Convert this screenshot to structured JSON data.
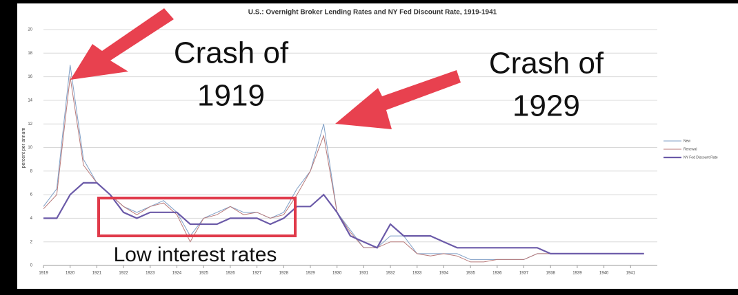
{
  "chart_data": {
    "type": "line",
    "title": "U.S.: Overnight Broker Lending Rates and NY Fed Discount Rate, 1919-1941",
    "y_label": "percent per annum",
    "x": [
      1919,
      1919.5,
      1920,
      1920.5,
      1921,
      1921.5,
      1922,
      1922.5,
      1923,
      1923.5,
      1924,
      1924.5,
      1925,
      1925.5,
      1926,
      1926.5,
      1927,
      1927.5,
      1928,
      1928.5,
      1929,
      1929.5,
      1930,
      1930.5,
      1931,
      1931.5,
      1932,
      1932.5,
      1933,
      1933.5,
      1934,
      1934.5,
      1935,
      1935.5,
      1936,
      1936.5,
      1937,
      1937.5,
      1938,
      1938.5,
      1939,
      1939.5,
      1940,
      1940.5,
      1941,
      1941.5
    ],
    "series": [
      {
        "name": "New",
        "color": "#7f9fc6",
        "width": 1,
        "values": [
          5,
          6.5,
          17,
          9,
          7,
          6,
          5,
          4.5,
          5,
          5.5,
          4.5,
          2.5,
          4,
          4.5,
          5,
          4.5,
          4.5,
          4,
          4.5,
          6.5,
          8,
          12,
          4.5,
          3,
          1.5,
          1.5,
          2.5,
          2.5,
          1,
          1,
          1,
          1,
          0.5,
          0.5,
          0.5,
          0.5,
          0.5,
          1,
          1,
          1,
          1,
          1,
          1,
          1,
          1,
          1
        ]
      },
      {
        "name": "Renewal",
        "color": "#b87a7a",
        "width": 1,
        "values": [
          4.8,
          6,
          16,
          8.5,
          7,
          6,
          5,
          4.3,
          5,
          5.3,
          4.3,
          2,
          4,
          4.3,
          5,
          4.3,
          4.5,
          4,
          4.3,
          6,
          8,
          11,
          4.5,
          2.8,
          1.5,
          1.5,
          2,
          2,
          1,
          0.8,
          1,
          0.8,
          0.3,
          0.3,
          0.5,
          0.5,
          0.5,
          1,
          1,
          1,
          1,
          1,
          1,
          1,
          1,
          1
        ]
      },
      {
        "name": "NY Fed Discount Rate",
        "color": "#6b5aa8",
        "width": 2.2,
        "values": [
          4,
          4,
          6,
          7,
          7,
          6,
          4.5,
          4,
          4.5,
          4.5,
          4.5,
          3.5,
          3.5,
          3.5,
          4,
          4,
          4,
          3.5,
          4,
          5,
          5,
          6,
          4.5,
          2.5,
          2,
          1.5,
          3.5,
          2.5,
          2.5,
          2.5,
          2,
          1.5,
          1.5,
          1.5,
          1.5,
          1.5,
          1.5,
          1.5,
          1,
          1,
          1,
          1,
          1,
          1,
          1,
          1
        ]
      }
    ],
    "xlim": [
      1919,
      1942
    ],
    "xticks": [
      1919,
      1920,
      1921,
      1922,
      1923,
      1924,
      1925,
      1926,
      1927,
      1928,
      1929,
      1930,
      1931,
      1932,
      1933,
      1934,
      1935,
      1936,
      1937,
      1938,
      1939,
      1940,
      1941
    ],
    "ylim": [
      0,
      20
    ],
    "yticks": [
      0,
      2,
      4,
      6,
      8,
      10,
      12,
      14,
      16,
      18,
      20
    ],
    "grid": true,
    "legend": "right",
    "annotations": [
      {
        "lines": [
          "Crash of",
          "1919"
        ]
      },
      {
        "lines": [
          "Crash of",
          "1929"
        ]
      },
      {
        "lines": [
          "Low interest rates"
        ]
      }
    ]
  }
}
